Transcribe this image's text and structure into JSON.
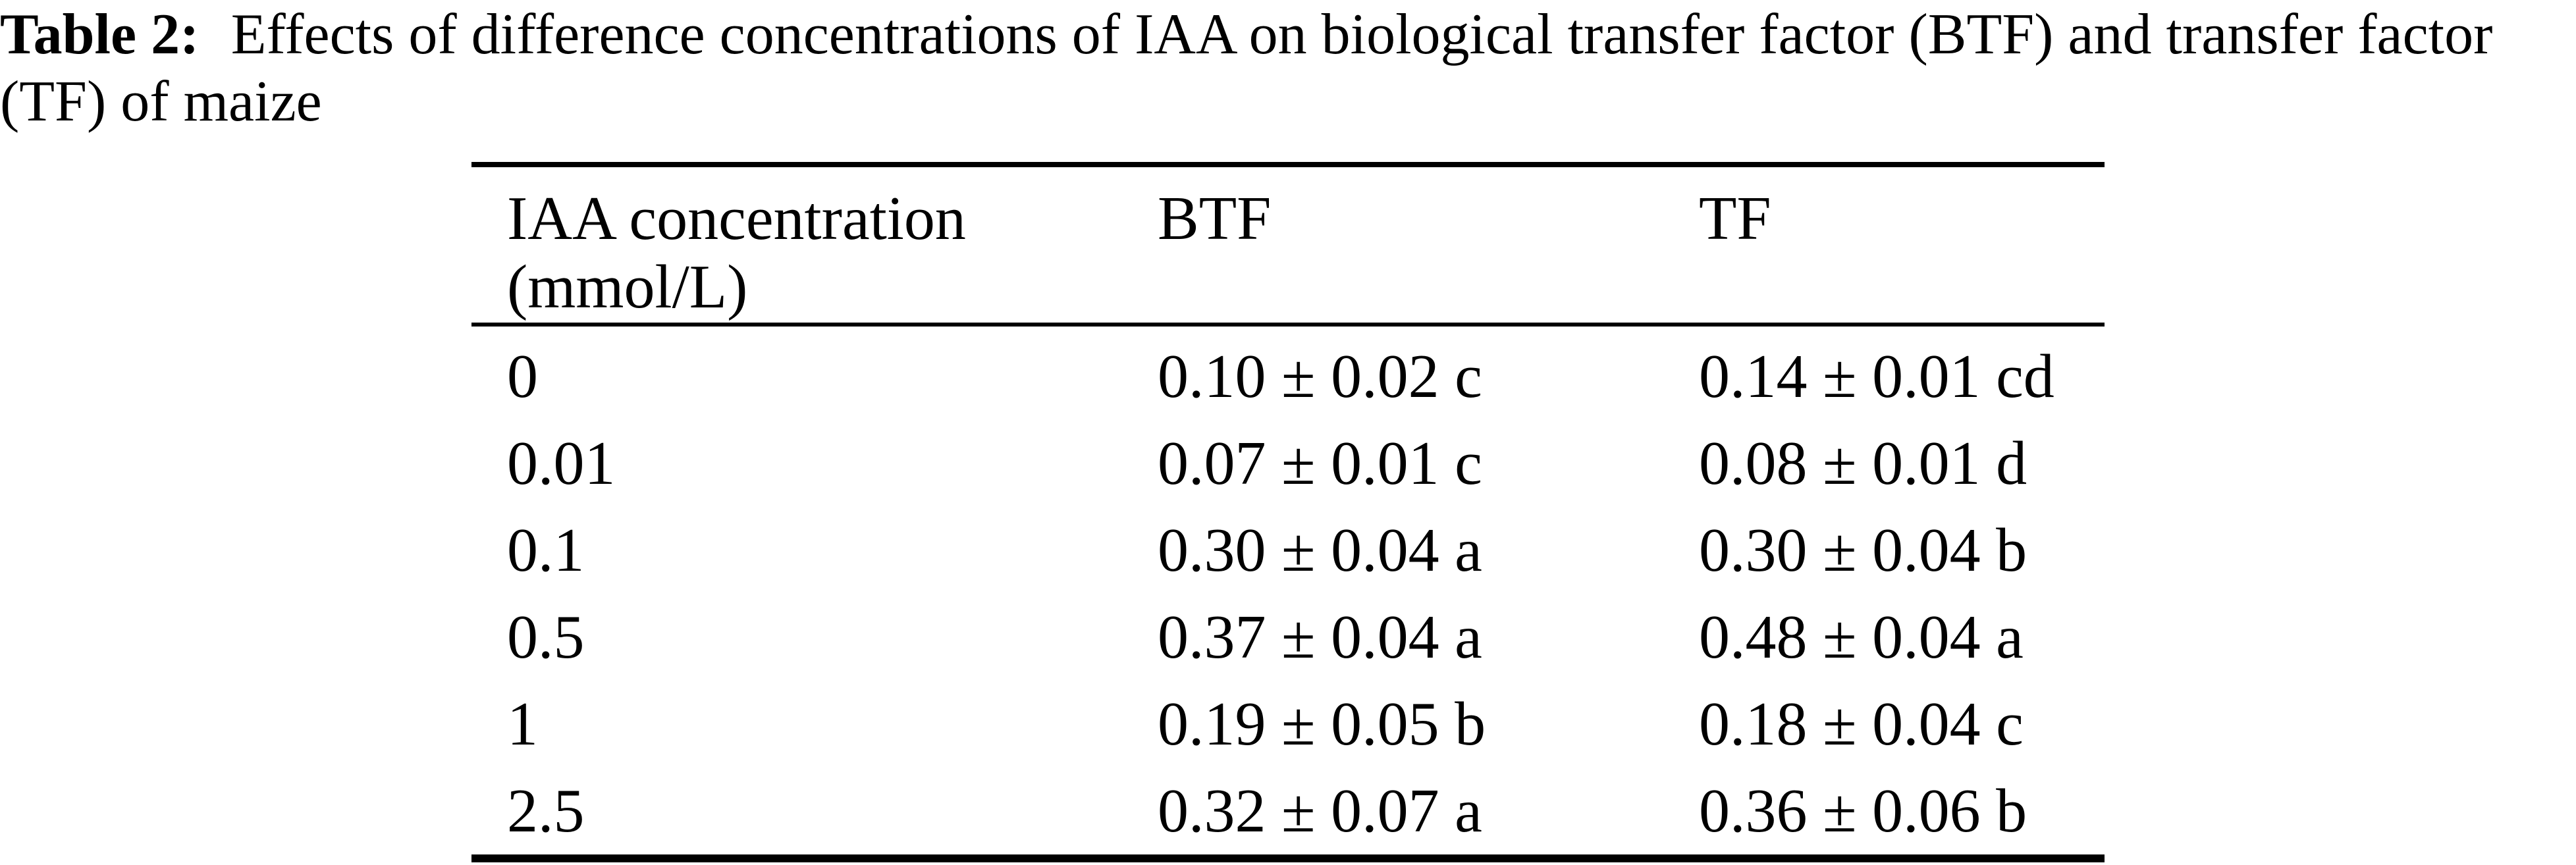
{
  "page": {
    "background": "#ffffff",
    "text_color": "#000000"
  },
  "caption": {
    "label": "Table 2:",
    "line1_rest": "Effects of difference concentrations of IAA on biological transfer factor (BTF) and transfer factor",
    "line2": "(TF) of maize"
  },
  "table": {
    "headers": [
      {
        "line1": "IAA concentration",
        "line2": "(mmol/L)"
      },
      {
        "line1": "BTF",
        "line2": ""
      },
      {
        "line1": "TF",
        "line2": ""
      }
    ],
    "rows": [
      [
        "0",
        "0.10 ± 0.02 c",
        "0.14 ± 0.01 cd"
      ],
      [
        "0.01",
        "0.07 ± 0.01 c",
        "0.08 ± 0.01 d"
      ],
      [
        "0.1",
        "0.30 ± 0.04 a",
        "0.30 ± 0.04 b"
      ],
      [
        "0.5",
        "0.37 ± 0.04 a",
        "0.48 ± 0.04 a"
      ],
      [
        "1",
        "0.19 ± 0.05 b",
        "0.18 ± 0.04 c"
      ],
      [
        "2.5",
        "0.32 ± 0.07 a",
        "0.36 ± 0.06 b"
      ]
    ]
  }
}
